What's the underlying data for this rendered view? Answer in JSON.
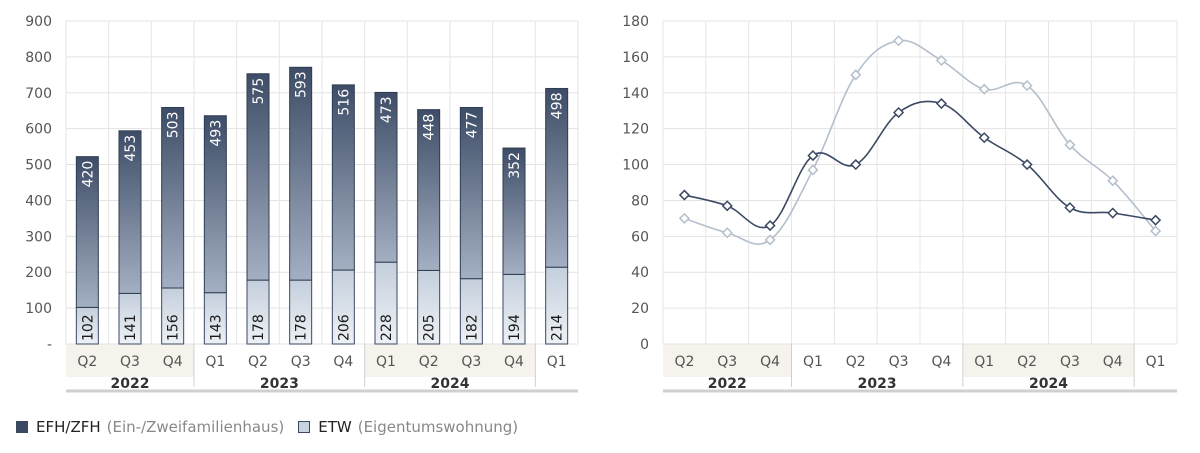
{
  "chart_data": [
    {
      "type": "bar",
      "stacked": true,
      "categories": [
        "Q2",
        "Q3",
        "Q4",
        "Q1",
        "Q2",
        "Q3",
        "Q4",
        "Q1",
        "Q2",
        "Q3",
        "Q4",
        "Q1"
      ],
      "year_groups": [
        {
          "label": "2022",
          "count": 3
        },
        {
          "label": "2023",
          "count": 4
        },
        {
          "label": "2024",
          "count": 4
        },
        {
          "label": "",
          "count": 1
        }
      ],
      "series": [
        {
          "name": "ETW",
          "values": [
            102,
            141,
            156,
            143,
            178,
            178,
            206,
            228,
            205,
            182,
            194,
            214
          ],
          "color": "#c9d3e0"
        },
        {
          "name": "EFH/ZFH",
          "values": [
            420,
            453,
            503,
            493,
            575,
            593,
            516,
            473,
            448,
            477,
            352,
            498
          ],
          "color": "#3b4a63"
        }
      ],
      "yticks": [
        "-",
        "100",
        "200",
        "300",
        "400",
        "500",
        "600",
        "700",
        "800",
        "900"
      ],
      "ylim": [
        0,
        900
      ],
      "grid": true
    },
    {
      "type": "line",
      "categories": [
        "Q2",
        "Q3",
        "Q4",
        "Q1",
        "Q2",
        "Q3",
        "Q4",
        "Q1",
        "Q2",
        "Q3",
        "Q4",
        "Q1"
      ],
      "year_groups": [
        {
          "label": "2022",
          "count": 3
        },
        {
          "label": "2023",
          "count": 4
        },
        {
          "label": "2024",
          "count": 4
        },
        {
          "label": "",
          "count": 1
        }
      ],
      "series": [
        {
          "name": "EFH/ZFH",
          "values": [
            83,
            77,
            66,
            105,
            100,
            129,
            134,
            115,
            100,
            76,
            73,
            69
          ],
          "color": "#3b4a63"
        },
        {
          "name": "ETW",
          "values": [
            70,
            62,
            58,
            97,
            150,
            169,
            158,
            142,
            144,
            111,
            91,
            63
          ],
          "color": "#b4bfcc"
        }
      ],
      "yticks": [
        "0",
        "20",
        "40",
        "60",
        "80",
        "100",
        "120",
        "140",
        "160",
        "180"
      ],
      "ylim": [
        0,
        180
      ],
      "grid": true
    }
  ],
  "legend": {
    "items": [
      {
        "short": "EFH/ZFH",
        "long": "(Ein-/Zweifamilienhaus)",
        "color": "#3b4a63"
      },
      {
        "short": "ETW",
        "long": "(Eigentumswohnung)",
        "color": "#c9d3e0"
      }
    ]
  }
}
